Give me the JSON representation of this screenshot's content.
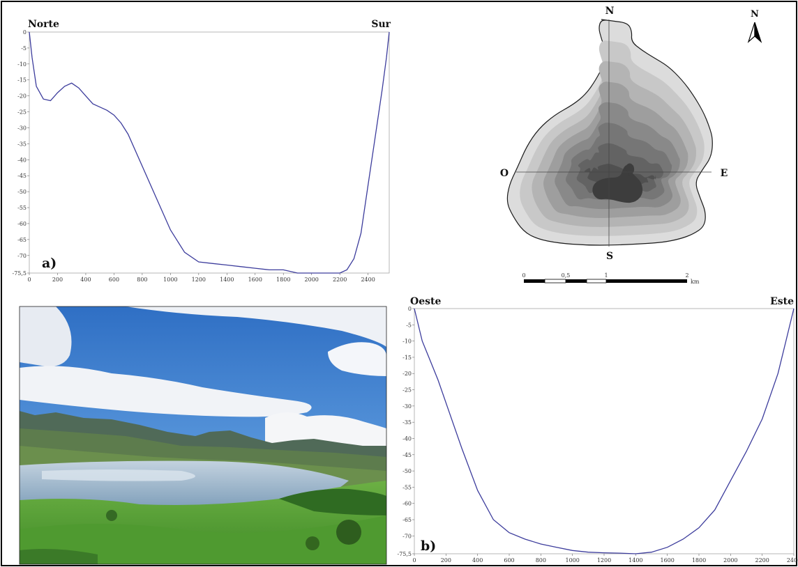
{
  "chart_data": [
    {
      "type": "line",
      "panel_label": "a)",
      "direction_start": "Norte",
      "direction_end": "Sur",
      "x_ticks": [
        0,
        200,
        400,
        600,
        800,
        1000,
        1200,
        1400,
        1600,
        1800,
        2000,
        2200,
        2400
      ],
      "y_ticks": [
        "0",
        "-5",
        "-10",
        "-15",
        "-20",
        "-25",
        "-30",
        "-35",
        "-40",
        "-45",
        "-50",
        "-55",
        "-60",
        "-65",
        "-70",
        "-75,5"
      ],
      "xlim": [
        0,
        2550
      ],
      "ylim": [
        -75.5,
        0
      ],
      "x": [
        0,
        20,
        50,
        100,
        150,
        200,
        250,
        300,
        350,
        400,
        450,
        500,
        550,
        600,
        650,
        700,
        800,
        900,
        1000,
        1100,
        1200,
        1300,
        1400,
        1500,
        1600,
        1700,
        1800,
        1900,
        2000,
        2100,
        2200,
        2250,
        2300,
        2350,
        2400,
        2450,
        2500,
        2530,
        2550
      ],
      "y": [
        0,
        -8,
        -17,
        -21,
        -21.5,
        -19,
        -17,
        -16,
        -17.5,
        -20,
        -22.5,
        -23.5,
        -24.5,
        -26,
        -28.5,
        -32,
        -42,
        -52,
        -62,
        -69,
        -72,
        -72.5,
        -73,
        -73.5,
        -74,
        -74.5,
        -74.5,
        -75.5,
        -75.5,
        -75.5,
        -75.5,
        -74.5,
        -71,
        -63,
        -48,
        -33,
        -18,
        -8,
        0
      ],
      "color": "#3c3c9c"
    },
    {
      "type": "line",
      "panel_label": "b)",
      "direction_start": "Oeste",
      "direction_end": "Este",
      "x_ticks": [
        0,
        200,
        400,
        600,
        800,
        1000,
        1200,
        1400,
        1600,
        1800,
        2000,
        2200,
        2400
      ],
      "y_ticks": [
        "0",
        "-5",
        "-10",
        "-15",
        "-20",
        "-25",
        "-30",
        "-35",
        "-40",
        "-45",
        "-50",
        "-55",
        "-60",
        "-65",
        "-70",
        "-75,5"
      ],
      "xlim": [
        0,
        2400
      ],
      "ylim": [
        -75.5,
        0
      ],
      "x": [
        0,
        50,
        100,
        150,
        200,
        300,
        400,
        500,
        600,
        700,
        800,
        900,
        1000,
        1100,
        1200,
        1300,
        1400,
        1500,
        1600,
        1700,
        1800,
        1900,
        2000,
        2100,
        2200,
        2300,
        2350,
        2400
      ],
      "y": [
        0,
        -10,
        -16,
        -22,
        -29,
        -43,
        -56,
        -65,
        -69,
        -71,
        -72.5,
        -73.5,
        -74.5,
        -75,
        -75.2,
        -75.3,
        -75.5,
        -75,
        -73.5,
        -71,
        -67.5,
        -62,
        -53,
        -44,
        -34,
        -20,
        -10,
        0
      ],
      "color": "#3c3c9c"
    }
  ],
  "map": {
    "north_top": "N",
    "south": "S",
    "west": "O",
    "east": "E",
    "north_arrow": "N",
    "arrow_icon": "north-arrow-icon",
    "scale_labels": [
      "0",
      "0,5",
      "1",
      "2"
    ],
    "scale_unit": "km",
    "contour_colors": [
      "#dcdcdc",
      "#c8c8c8",
      "#b4b4b4",
      "#9e9e9e",
      "#898989",
      "#767676",
      "#636363",
      "#505050",
      "#3d3d3d"
    ],
    "outline_color": "#1a1a1a"
  },
  "photo": {
    "subject": "lake-landscape",
    "sky_color": "#3d7fd3",
    "cloud_color": "#f2f4f8",
    "mountain_color": "#4a5d45",
    "lake_color": "#9fb6cb",
    "grass_color": "#5aa43a"
  }
}
